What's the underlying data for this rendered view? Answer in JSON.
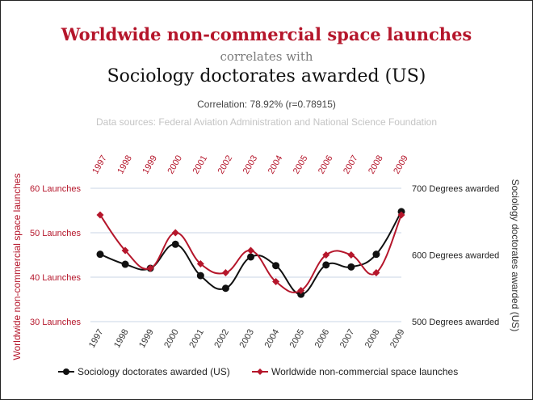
{
  "header": {
    "title_top": "Worldwide non-commercial space launches",
    "connector": "correlates with",
    "title_bottom": "Sociology doctorates awarded (US)",
    "correlation": "Correlation: 78.92% (r=0.78915)",
    "sources": "Data sources: Federal Aviation Administration and National Science Foundation"
  },
  "chart_data": {
    "type": "line",
    "x": [
      "1997",
      "1998",
      "1999",
      "2000",
      "2001",
      "2002",
      "2003",
      "2004",
      "2005",
      "2006",
      "2007",
      "2008",
      "2009"
    ],
    "series": [
      {
        "name": "Worldwide non-commercial space launches",
        "axis": "left",
        "color": "#b5162b",
        "marker": "diamond",
        "values": [
          54,
          46,
          42,
          50,
          43,
          41,
          46,
          39,
          37,
          45,
          45,
          41,
          54
        ]
      },
      {
        "name": "Sociology doctorates awarded (US)",
        "axis": "right",
        "color": "#111111",
        "marker": "circle",
        "values": [
          601,
          586,
          580,
          616,
          569,
          550,
          597,
          584,
          541,
          585,
          582,
          601,
          665
        ]
      }
    ],
    "left_axis": {
      "label": "Worldwide non-commercial space launches",
      "ticks": [
        30,
        40,
        50,
        60
      ],
      "tick_labels": [
        "30 Launches",
        "40 Launches",
        "50 Launches",
        "60 Launches"
      ],
      "range": [
        30,
        60
      ]
    },
    "right_axis": {
      "label": "Sociology doctorates awarded (US)",
      "ticks": [
        500,
        600,
        700
      ],
      "tick_labels": [
        "500 Degrees awarded",
        "600 Degrees awarded",
        "700 Degrees awarded"
      ],
      "range": [
        500,
        700
      ]
    },
    "top_axis_labels_color": "#b5162b",
    "bottom_axis_labels_color": "#333333",
    "grid": true,
    "legend": "bottom"
  }
}
